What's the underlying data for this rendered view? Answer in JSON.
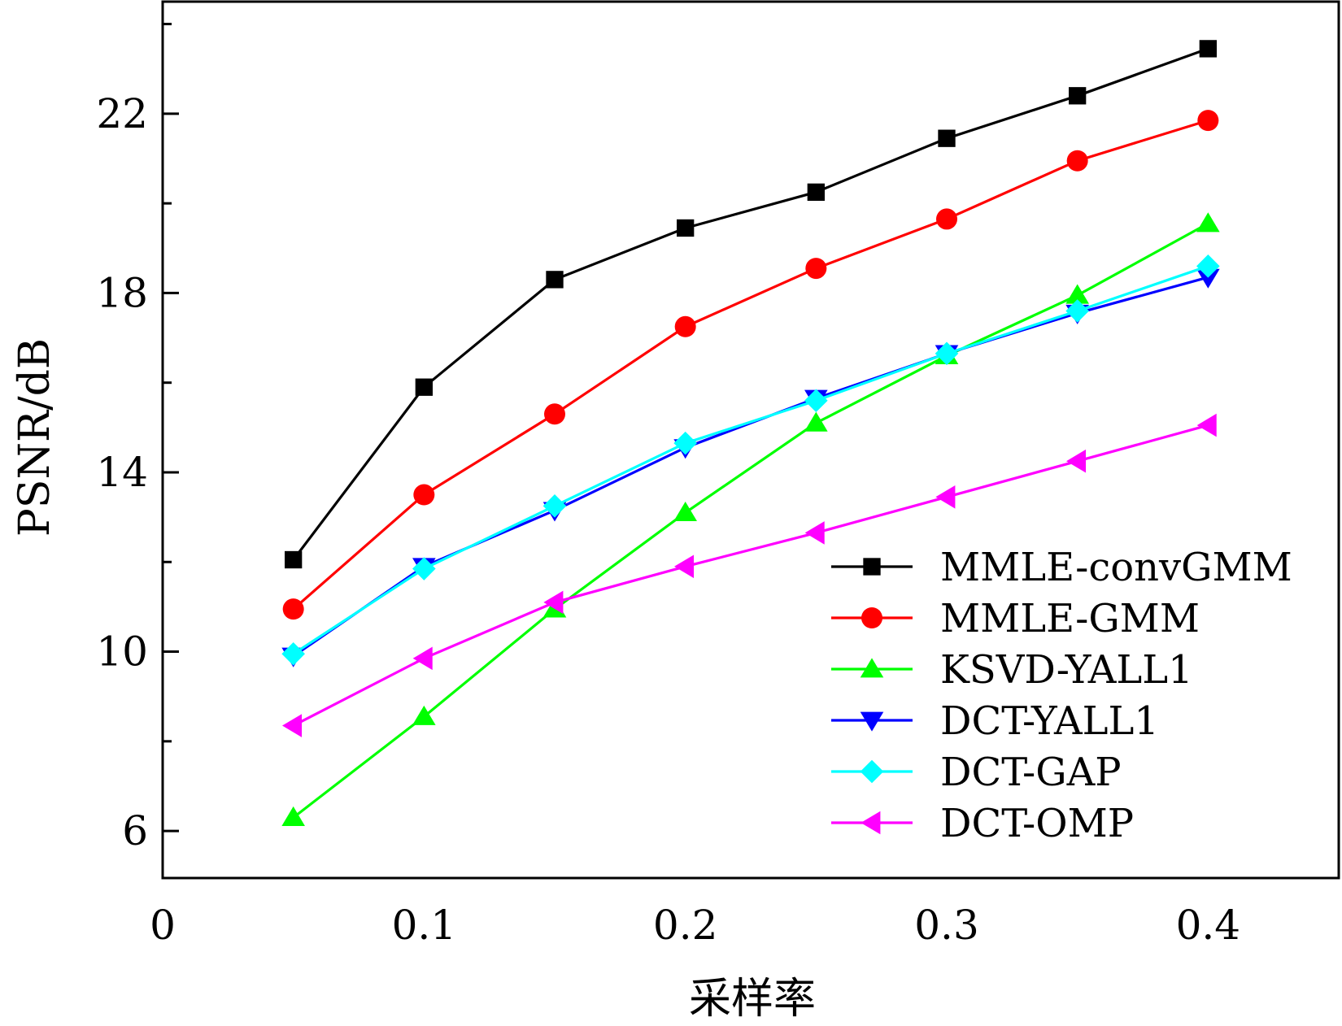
{
  "chart_data": {
    "type": "line",
    "xlabel": "采样率",
    "ylabel": "PSNR/dB",
    "xlim": [
      0,
      0.45
    ],
    "ylim": [
      4.95,
      24.5
    ],
    "x_ticks": [
      0,
      0.1,
      0.2,
      0.3,
      0.4
    ],
    "x_tick_labels": [
      "0",
      "0.1",
      "0.2",
      "0.3",
      "0.4"
    ],
    "y_ticks": [
      6,
      10,
      14,
      18,
      22
    ],
    "y_tick_labels": [
      "6",
      "10",
      "14",
      "18",
      "22"
    ],
    "y_minor_ticks": [
      8,
      12,
      16,
      20,
      24
    ],
    "grid": false,
    "legend_position": "bottom-right",
    "x": [
      0.05,
      0.1,
      0.15,
      0.2,
      0.25,
      0.3,
      0.35,
      0.4
    ],
    "series": [
      {
        "name": "MMLE-convGMM",
        "color": "#000000",
        "marker": "square",
        "values": [
          12.05,
          15.9,
          18.3,
          19.45,
          20.25,
          21.45,
          22.4,
          23.45
        ]
      },
      {
        "name": "MMLE-GMM",
        "color": "#ff0000",
        "marker": "circle",
        "values": [
          10.95,
          13.5,
          15.3,
          17.25,
          18.55,
          19.65,
          20.95,
          21.85
        ]
      },
      {
        "name": "KSVD-YALL1",
        "color": "#00ff00",
        "marker": "triangle-up",
        "values": [
          6.3,
          8.55,
          10.95,
          13.1,
          15.1,
          16.6,
          17.95,
          19.55
        ]
      },
      {
        "name": "DCT-YALL1",
        "color": "#0000ff",
        "marker": "triangle-down",
        "values": [
          9.9,
          11.9,
          13.15,
          14.55,
          15.65,
          16.65,
          17.55,
          18.35
        ]
      },
      {
        "name": "DCT-GAP",
        "color": "#00ffff",
        "marker": "diamond",
        "values": [
          9.95,
          11.85,
          13.25,
          14.65,
          15.6,
          16.65,
          17.6,
          18.6
        ]
      },
      {
        "name": "DCT-OMP",
        "color": "#ff00ff",
        "marker": "triangle-left",
        "values": [
          8.35,
          9.85,
          11.1,
          11.9,
          12.65,
          13.45,
          14.25,
          15.05
        ]
      }
    ]
  }
}
